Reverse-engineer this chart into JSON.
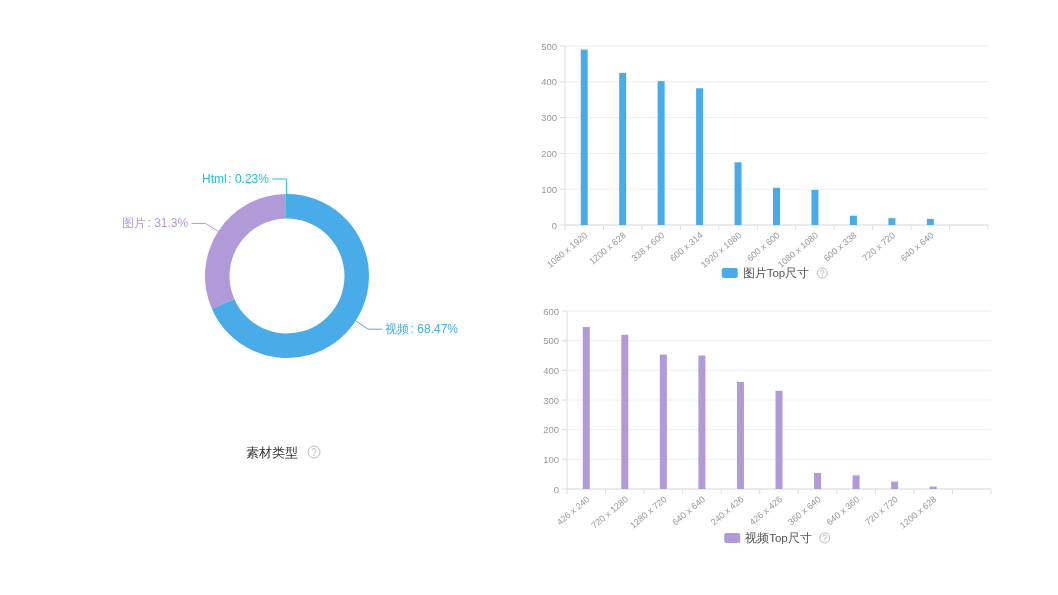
{
  "chart_data": [
    {
      "type": "donut",
      "title": "素材类型",
      "categories": [
        "视频",
        "图片",
        "Html"
      ],
      "values": [
        68.47,
        31.3,
        0.23
      ],
      "colors": [
        "#49abe8",
        "#b09ad8",
        "#1fc2c8"
      ],
      "value_labels": [
        ": 68.47%",
        ": 31.3%",
        ": 0.23%"
      ]
    },
    {
      "type": "bar",
      "categories": [
        "1080 x 1920",
        "1200 x 628",
        "338 x 600",
        "600 x 314",
        "1920 x 1080",
        "600 x 600",
        "1080 x 1080",
        "600 x 338",
        "720 x 720",
        "640 x 640",
        null
      ],
      "series": [
        {
          "name": "图片Top尺寸",
          "color": "#49abe8",
          "values": [
            490,
            425,
            402,
            382,
            175,
            104,
            98,
            26,
            19,
            17,
            null
          ]
        }
      ],
      "ylim": [
        0,
        500
      ],
      "yticks": [
        0,
        100,
        200,
        300,
        400,
        500
      ],
      "grid": "y",
      "legend": "bottom"
    },
    {
      "type": "bar",
      "categories": [
        "426 x 240",
        "720 x 1280",
        "1280 x 720",
        "640 x 640",
        "240 x 426",
        "426 x 426",
        "360 x 640",
        "640 x 360",
        "720 x 720",
        "1200 x 628",
        null
      ],
      "series": [
        {
          "name": "视频Top尺寸",
          "color": "#b09ad8",
          "values": [
            546,
            520,
            453,
            450,
            361,
            331,
            54,
            46,
            25,
            8,
            null
          ]
        }
      ],
      "ylim": [
        0,
        600
      ],
      "yticks": [
        0,
        100,
        200,
        300,
        400,
        500,
        600
      ],
      "grid": "y",
      "legend": "bottom"
    }
  ]
}
